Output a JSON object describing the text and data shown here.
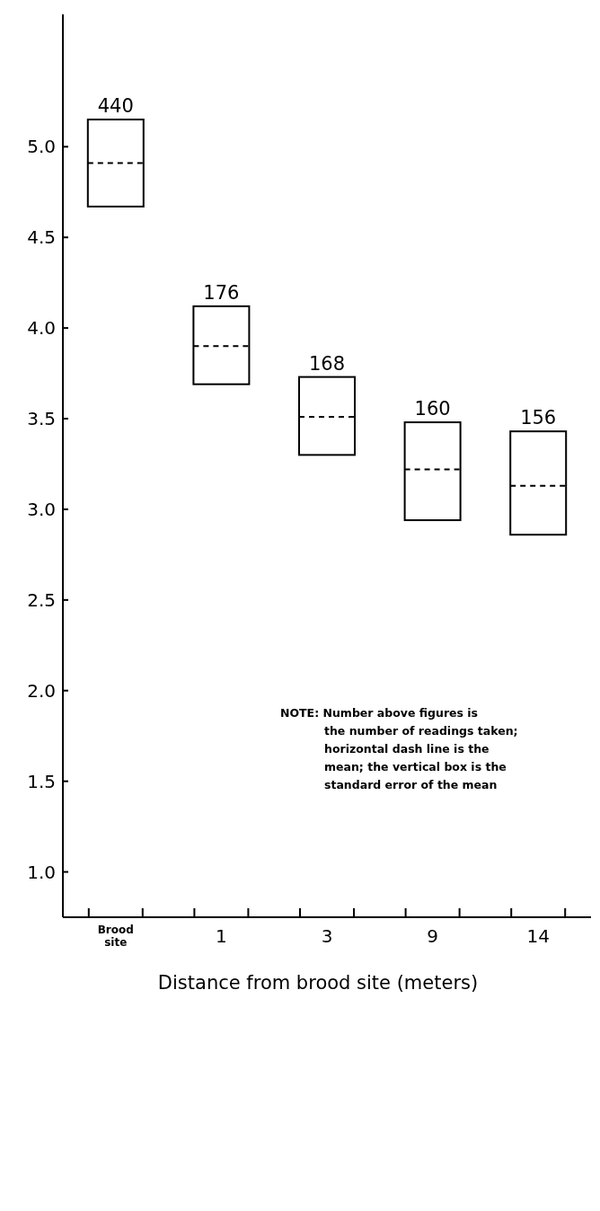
{
  "chart_data": {
    "type": "box",
    "xlabel": "Distance from brood site (meters)",
    "categories": [
      "Brood site",
      "1",
      "3",
      "9",
      "14"
    ],
    "boxes": [
      {
        "low": 4.67,
        "q1": 4.67,
        "median": 4.91,
        "q3": 5.15,
        "high": 5.15,
        "mean": 4.91
      },
      {
        "low": 3.69,
        "q1": 3.69,
        "median": 3.9,
        "q3": 4.12,
        "high": 4.12,
        "mean": 3.9
      },
      {
        "low": 3.3,
        "q1": 3.3,
        "median": 3.51,
        "q3": 3.73,
        "high": 3.73,
        "mean": 3.51
      },
      {
        "low": 2.94,
        "q1": 2.94,
        "median": 3.22,
        "q3": 3.48,
        "high": 3.48,
        "mean": 3.22
      },
      {
        "low": 2.86,
        "q1": 2.86,
        "median": 3.13,
        "q3": 3.43,
        "high": 3.43,
        "mean": 3.13
      }
    ],
    "color": "#000000",
    "line_style": "dashed",
    "ylim": [
      0.75,
      5.73
    ],
    "yticks": [
      {
        "value": 1,
        "label": "1.0"
      },
      {
        "value": 1.5,
        "label": "1.5"
      },
      {
        "value": 2,
        "label": "2.0"
      },
      {
        "value": 2.5,
        "label": "2.5"
      },
      {
        "value": 3,
        "label": "3.0"
      },
      {
        "value": 3.5,
        "label": "3.5"
      },
      {
        "value": 4,
        "label": "4.0"
      },
      {
        "value": 4.5,
        "label": "4.5"
      },
      {
        "value": 5,
        "label": "5.0"
      }
    ],
    "annotations": [
      {
        "text": "440",
        "x": "Brood site",
        "y": 5.15
      },
      {
        "text": "176",
        "x": "1",
        "y": 4.12
      },
      {
        "text": "168",
        "x": "3",
        "y": 3.73
      },
      {
        "text": "160",
        "x": "9",
        "y": 3.48
      },
      {
        "text": "156",
        "x": "14",
        "y": 3.43
      },
      "NOTE: Number above figures is the number of readings taken; horizontal dash line is the mean; the vertical box is the standard error of the mean"
    ]
  }
}
